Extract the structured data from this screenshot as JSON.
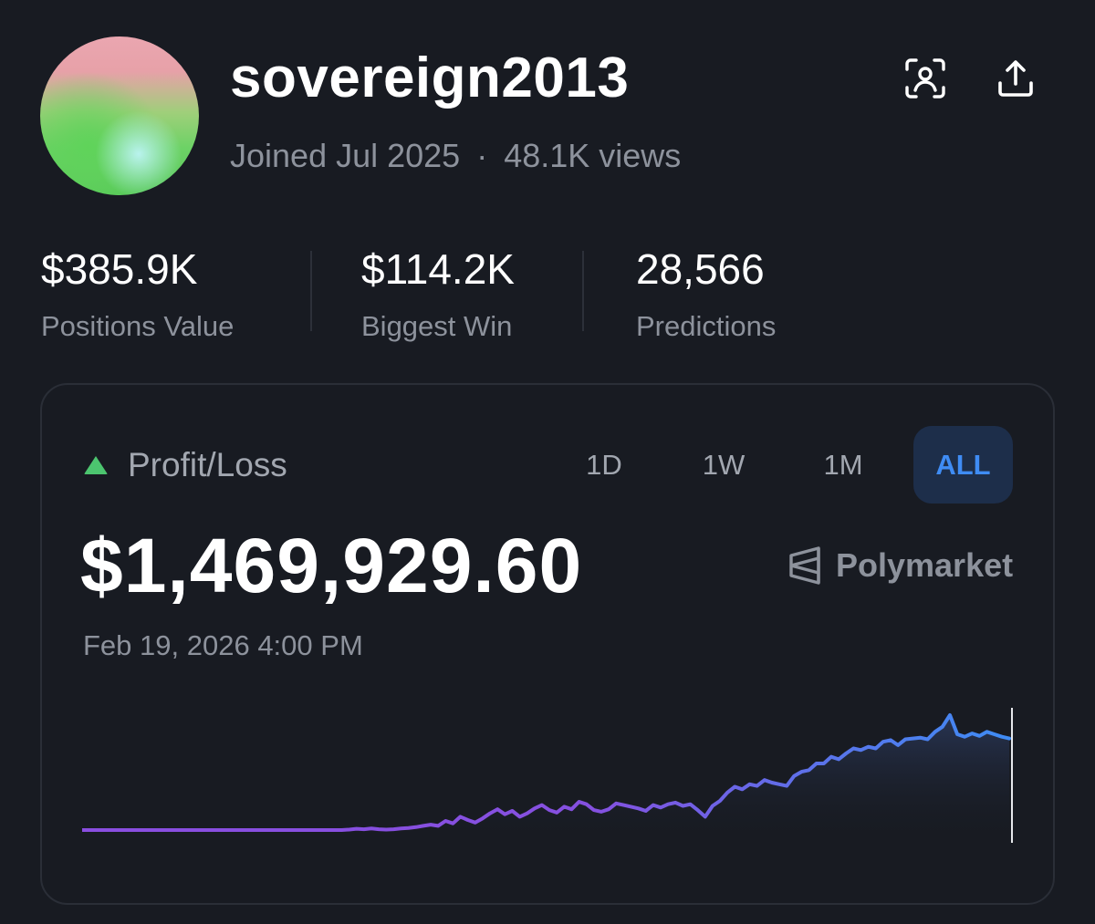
{
  "profile": {
    "username": "sovereign2013",
    "joined": "Joined Jul 2025",
    "separator": "·",
    "views": "48.1K views"
  },
  "header_icons": [
    "scan-profile-icon",
    "share-icon"
  ],
  "stats": [
    {
      "value": "$385.9K",
      "label": "Positions Value"
    },
    {
      "value": "$114.2K",
      "label": "Biggest Win"
    },
    {
      "value": "28,566",
      "label": "Predictions"
    }
  ],
  "pnl_card": {
    "title": "Profit/Loss",
    "ranges": [
      "1D",
      "1W",
      "1M",
      "ALL"
    ],
    "selected_range": "ALL",
    "value": "$1,469,929.60",
    "brand": "Polymarket",
    "timestamp": "Feb 19, 2026 4:00 PM"
  },
  "colors": {
    "background": "#181b22",
    "positive": "#4cc56f",
    "accent_blue": "#3f8cf4",
    "line_start": "#8a4ee0",
    "line_end": "#3f8cf4"
  },
  "chart_data": {
    "type": "line",
    "y_unit": "relative",
    "series": [
      {
        "values": [
          0,
          0,
          0,
          0,
          0,
          0,
          0,
          0,
          0,
          0,
          0,
          0,
          0,
          0,
          0,
          0,
          0,
          0,
          0,
          0,
          0,
          0,
          0,
          0,
          0,
          0,
          0,
          0,
          0,
          0,
          0,
          0,
          0,
          0,
          0,
          0,
          0.5,
          1.5,
          1,
          2,
          1,
          0.5,
          1,
          2,
          2.5,
          3.5,
          5,
          6.5,
          5,
          11,
          8,
          16,
          12,
          9,
          14,
          20,
          25,
          19,
          23,
          16,
          20,
          26,
          30,
          24,
          21,
          28,
          25,
          34,
          31,
          24,
          22,
          25,
          32,
          30,
          28,
          26,
          23,
          30,
          27,
          31,
          33,
          29,
          31,
          24,
          16,
          29,
          35,
          45,
          52,
          49,
          55,
          53,
          60,
          57,
          55,
          53,
          65,
          70,
          72,
          80,
          80,
          88,
          85,
          92,
          98,
          96,
          100,
          98,
          106,
          108,
          102,
          109,
          110,
          111,
          109,
          118,
          124,
          138,
          115,
          112,
          116,
          113,
          118,
          115,
          112,
          110
        ]
      }
    ],
    "grid": false,
    "legend": "none",
    "crosshair": "end"
  }
}
